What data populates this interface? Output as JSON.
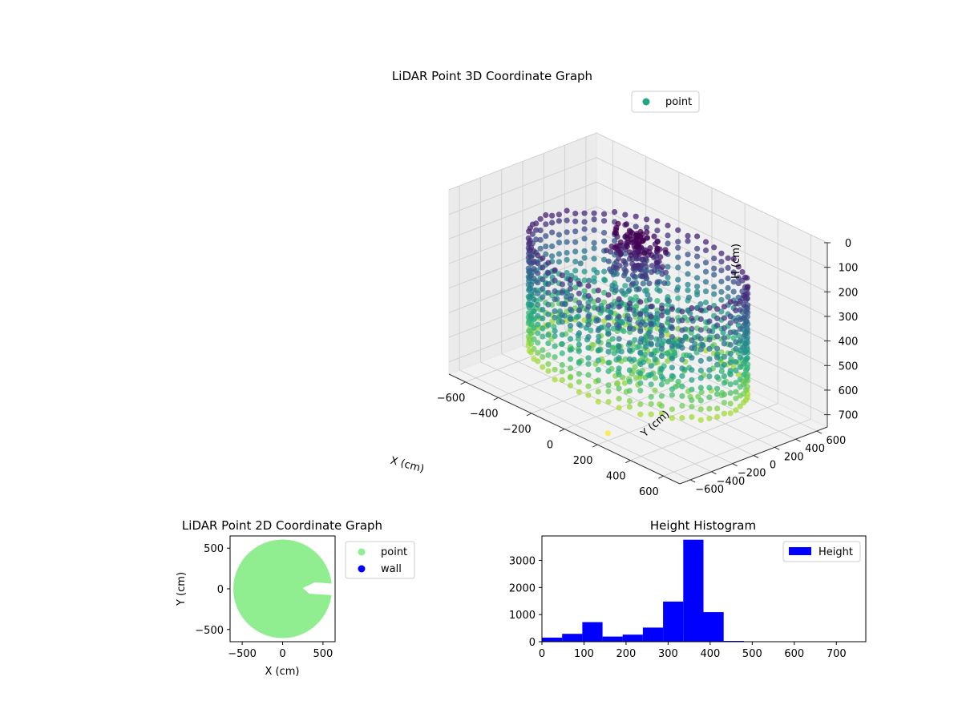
{
  "chart_data": [
    {
      "type": "scatter",
      "projection": "3d",
      "title": "LiDAR Point 3D Coordinate Graph",
      "xlabel": "X (cm)",
      "ylabel": "Y (cm)",
      "zlabel": "H (cm)",
      "xlim": [
        -700,
        700
      ],
      "ylim": [
        -700,
        700
      ],
      "zlim": [
        0,
        750
      ],
      "z_inverted": true,
      "xticks": [
        "−600",
        "−400",
        "−200",
        "0",
        "200",
        "400",
        "600"
      ],
      "yticks": [
        "−600",
        "−400",
        "−200",
        "0",
        "200",
        "400",
        "600"
      ],
      "zticks": [
        "0",
        "100",
        "200",
        "300",
        "400",
        "500",
        "600",
        "700"
      ],
      "xtick_values": [
        -600,
        -400,
        -200,
        0,
        200,
        400,
        600
      ],
      "ytick_values": [
        -600,
        -400,
        -200,
        0,
        200,
        400,
        600
      ],
      "ztick_values": [
        0,
        100,
        200,
        300,
        400,
        500,
        600,
        700
      ],
      "grid": true,
      "legend": {
        "position": "top-right",
        "entries": [
          {
            "label": "point",
            "color": "#21a585"
          }
        ]
      },
      "colormap": "viridis",
      "color_by": "height",
      "series": [
        {
          "name": "point",
          "description_values": "ring-shaped room wall, radius ~550 cm, heights 150–700 cm; dense cluster near center at heights 100–250 cm",
          "approx_points": [
            {
              "x": -560,
              "y": 0,
              "z": 450
            },
            {
              "x": -400,
              "y": 390,
              "z": 420
            },
            {
              "x": 0,
              "y": 560,
              "z": 400
            },
            {
              "x": 400,
              "y": 390,
              "z": 420
            },
            {
              "x": 560,
              "y": 0,
              "z": 450
            },
            {
              "x": 400,
              "y": -390,
              "z": 470
            },
            {
              "x": 0,
              "y": -560,
              "z": 500
            },
            {
              "x": -400,
              "y": -390,
              "z": 480
            },
            {
              "x": 0,
              "y": 0,
              "z": 200
            },
            {
              "x": 50,
              "y": 50,
              "z": 150
            },
            {
              "x": 200,
              "y": -600,
              "z": 720
            }
          ]
        }
      ]
    },
    {
      "type": "scatter",
      "title": "LiDAR Point 2D Coordinate Graph",
      "xlabel": "X (cm)",
      "ylabel": "Y (cm)",
      "xlim": [
        -650,
        650
      ],
      "ylim": [
        -650,
        650
      ],
      "xticks": [
        "−500",
        "0",
        "500"
      ],
      "yticks": [
        "−500",
        "0",
        "500"
      ],
      "xtick_values": [
        -500,
        0,
        500
      ],
      "ytick_values": [
        -500,
        0,
        500
      ],
      "legend": {
        "position": "outside-right",
        "entries": [
          {
            "label": "point",
            "color": "#90ee90"
          },
          {
            "label": "wall",
            "color": "#0000ff"
          }
        ]
      },
      "series": [
        {
          "name": "point",
          "color": "#90ee90",
          "shape": "filled disc, radius ~600 cm, with notch on right side near y=0"
        },
        {
          "name": "wall",
          "color": "#0000ff",
          "values": []
        }
      ]
    },
    {
      "type": "bar",
      "subtype": "histogram",
      "title": "Height Histogram",
      "xlabel": "",
      "ylabel": "",
      "xlim": [
        0,
        770
      ],
      "ylim": [
        0,
        3900
      ],
      "xticks": [
        "0",
        "100",
        "200",
        "300",
        "400",
        "500",
        "600",
        "700"
      ],
      "yticks": [
        "0",
        "1000",
        "2000",
        "3000"
      ],
      "xtick_values": [
        0,
        100,
        200,
        300,
        400,
        500,
        600,
        700
      ],
      "ytick_values": [
        0,
        1000,
        2000,
        3000
      ],
      "bin_edges": [
        0,
        48,
        96,
        144,
        192,
        240,
        288,
        336,
        384,
        432,
        480,
        528,
        576,
        624,
        672,
        720,
        768
      ],
      "counts": [
        150,
        290,
        720,
        190,
        260,
        520,
        1480,
        3760,
        1090,
        30,
        10,
        5,
        5,
        5,
        5,
        5
      ],
      "color": "#0000ff",
      "legend": {
        "position": "top-right",
        "entries": [
          {
            "label": "Height",
            "color": "#0000ff"
          }
        ]
      }
    }
  ]
}
